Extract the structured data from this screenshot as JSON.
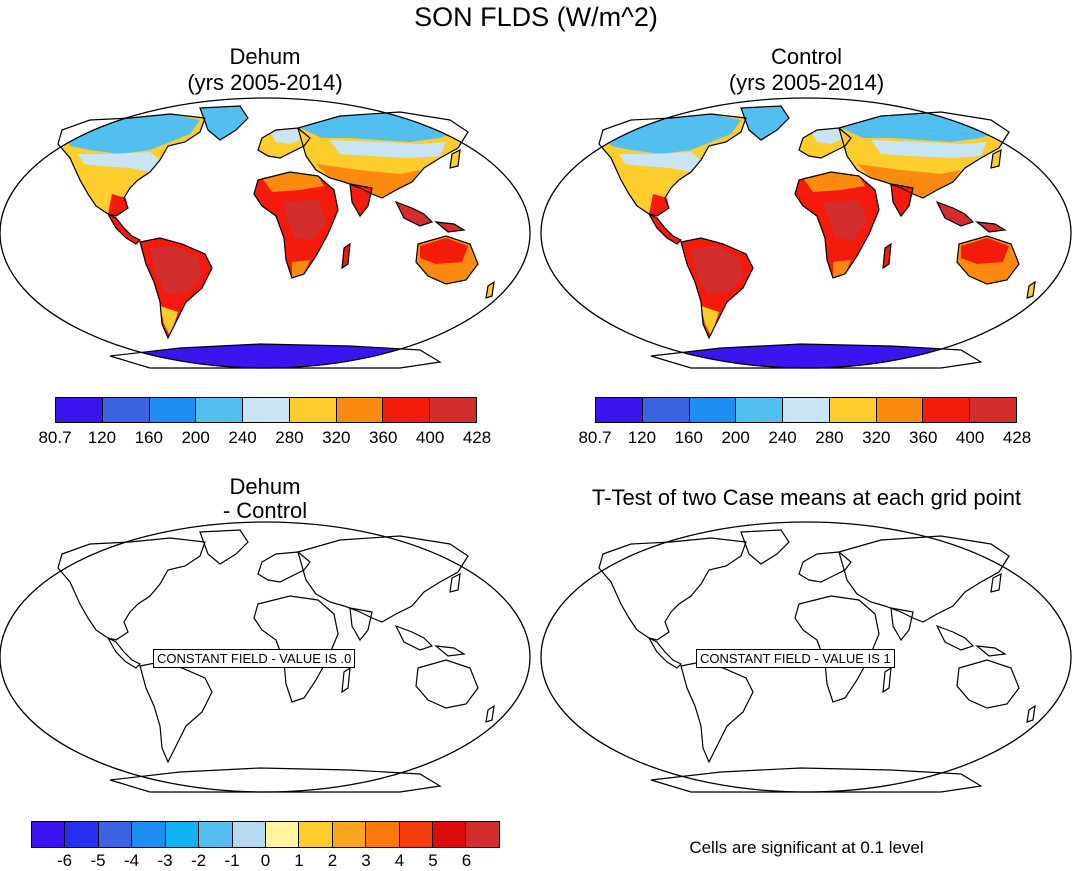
{
  "title": "SON FLDS (W/m^2)",
  "panels": [
    {
      "title_line1": "Dehum",
      "title_line2": "(yrs 2005-2014)"
    },
    {
      "title_line1": "Control",
      "title_line2": "(yrs 2005-2014)"
    },
    {
      "title_line1": "Dehum",
      "title_line2": "- Control",
      "constant_label": "CONSTANT FIELD - VALUE IS .0"
    },
    {
      "title_line1": "T-Test of two Case means at each grid point",
      "constant_label": "CONSTANT FIELD - VALUE IS 1"
    }
  ],
  "colorbar_top": {
    "colors": [
      "#3c14f0",
      "#3c64e0",
      "#1e8ff0",
      "#52bff0",
      "#c9e5f5",
      "#fccd2c",
      "#fb8a10",
      "#f51b0c",
      "#d22e2e"
    ],
    "ticks": [
      "80.7",
      "120",
      "160",
      "200",
      "240",
      "280",
      "320",
      "360",
      "400",
      "428"
    ]
  },
  "colorbar_diff": {
    "colors": [
      "#3c14f0",
      "#2830f0",
      "#3c64e0",
      "#1e8ff0",
      "#10b4f5",
      "#52bff0",
      "#b6dbf0",
      "#fff4a0",
      "#fccd2c",
      "#fba520",
      "#fb7a10",
      "#f53a0c",
      "#dc0c0c",
      "#d22e2e"
    ],
    "ticks": [
      "-6",
      "-5",
      "-4",
      "-3",
      "-2",
      "-1",
      "0",
      "1",
      "2",
      "3",
      "4",
      "5",
      "6"
    ]
  },
  "significance_note": "Cells are significant at 0.1 level",
  "legend_colors": {
    "cold": "#3c14f0",
    "cool": "#52bff0",
    "mild": "#c9e5f5",
    "warm": "#fccd2c",
    "hot": "#f51b0c",
    "very_hot": "#d22e2e"
  }
}
